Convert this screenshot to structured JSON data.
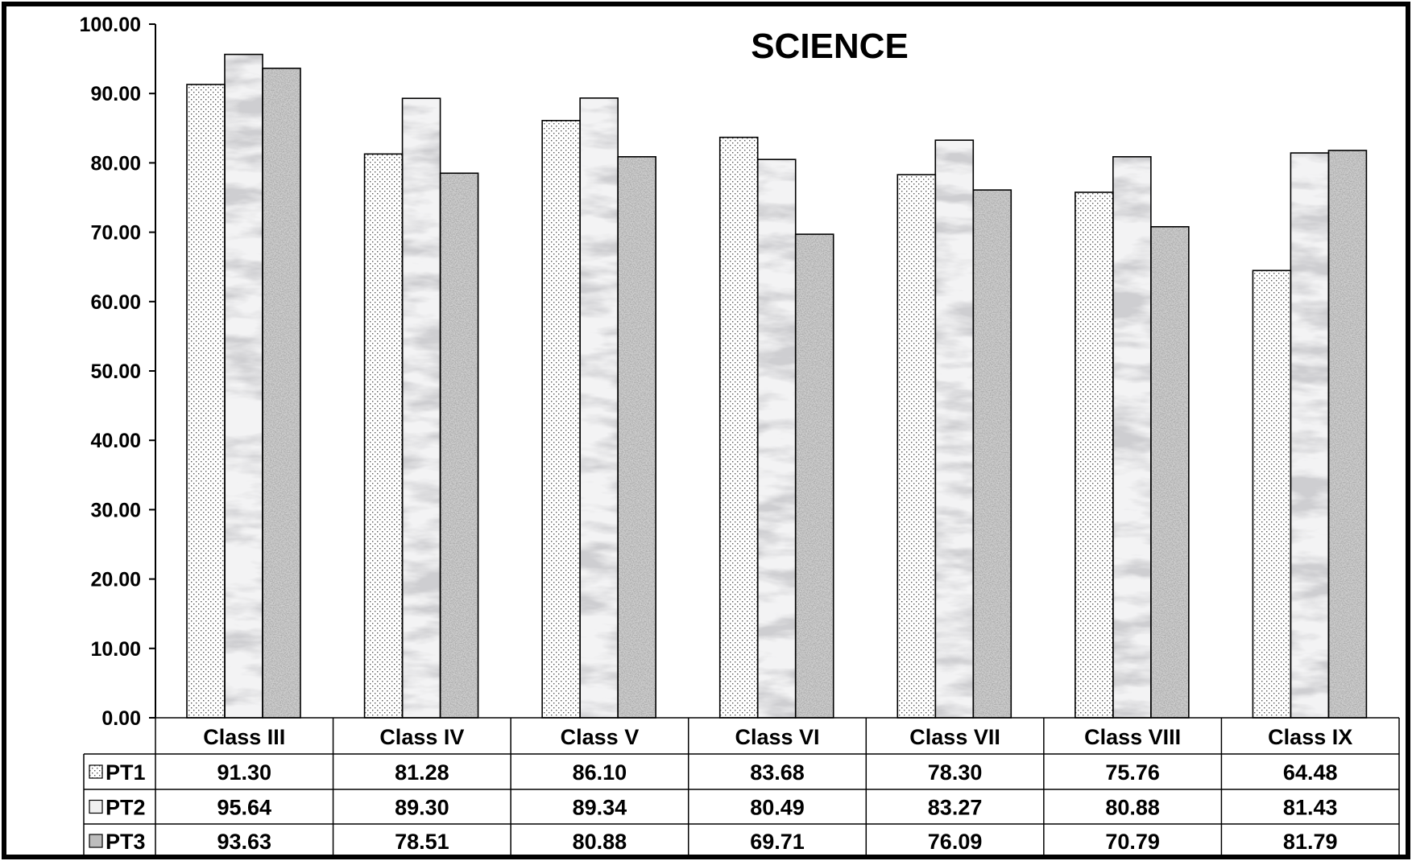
{
  "chart_data": {
    "type": "bar",
    "title": "SCIENCE",
    "xlabel": "",
    "ylabel": "",
    "ylim": [
      0,
      100
    ],
    "yticks": [
      "0.00",
      "10.00",
      "20.00",
      "30.00",
      "40.00",
      "50.00",
      "60.00",
      "70.00",
      "80.00",
      "90.00",
      "100.00"
    ],
    "grid": false,
    "legend": "data-table",
    "categories": [
      "Class III",
      "Class IV",
      "Class V",
      "Class VI",
      "Class VII",
      "Class VIII",
      "Class IX"
    ],
    "series": [
      {
        "name": "PT1",
        "values": [
          91.3,
          81.28,
          86.1,
          83.68,
          78.3,
          75.76,
          64.48
        ],
        "labels": [
          "91.30",
          "81.28",
          "86.10",
          "83.68",
          "78.30",
          "75.76",
          "64.48"
        ],
        "pattern": "dotted"
      },
      {
        "name": "PT2",
        "values": [
          95.64,
          89.3,
          89.34,
          80.49,
          83.27,
          80.88,
          81.43
        ],
        "labels": [
          "95.64",
          "89.30",
          "89.34",
          "80.49",
          "83.27",
          "80.88",
          "81.43"
        ],
        "pattern": "marble"
      },
      {
        "name": "PT3",
        "values": [
          93.63,
          78.51,
          80.88,
          69.71,
          76.09,
          70.79,
          81.79
        ],
        "labels": [
          "93.63",
          "78.51",
          "80.88",
          "69.71",
          "76.09",
          "70.79",
          "81.79"
        ],
        "pattern": "granite"
      }
    ]
  }
}
